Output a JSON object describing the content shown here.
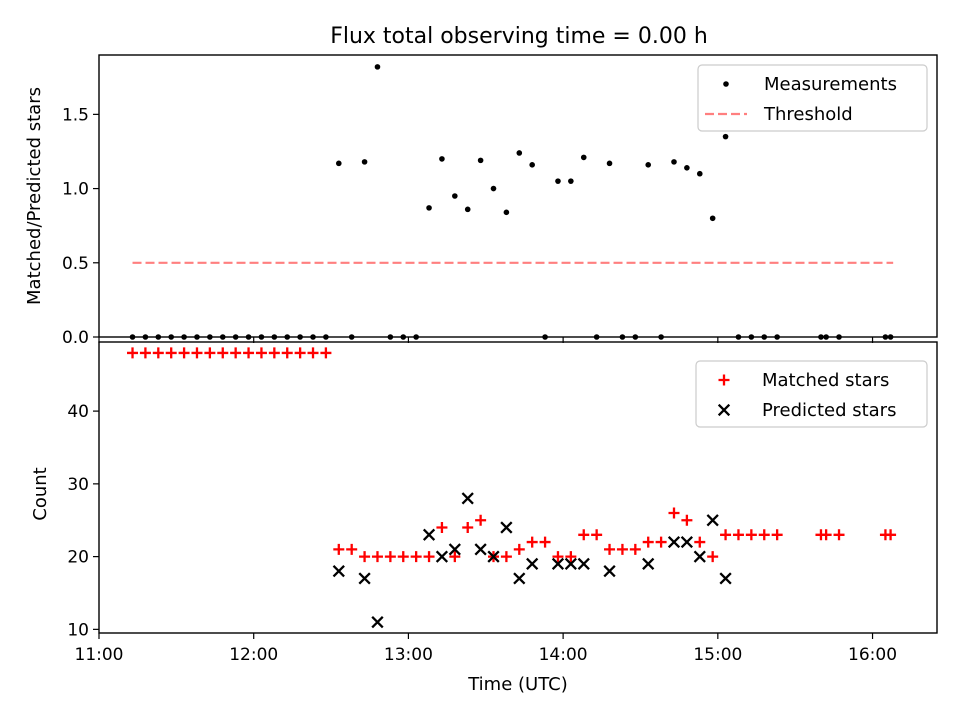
{
  "chart_data": [
    {
      "type": "scatter",
      "title": "Flux total observing time = 0.00 h",
      "xlabel": "",
      "ylabel": "Matched/Predicted stars",
      "xlim": [
        "11:00",
        "16:25"
      ],
      "ylim": [
        0,
        1.9
      ],
      "yticks": [
        0.0,
        0.5,
        1.0,
        1.5
      ],
      "ytick_labels": [
        "0.0",
        "0.5",
        "1.0",
        "1.5"
      ],
      "legend": {
        "placement": "top-right",
        "entries": [
          "Measurements",
          "Threshold"
        ]
      },
      "grid": false,
      "series": [
        {
          "name": "Measurements",
          "marker": "dot",
          "color": "#000000",
          "points": [
            [
              "11:13",
              0
            ],
            [
              "11:18",
              0
            ],
            [
              "11:23",
              0
            ],
            [
              "11:28",
              0
            ],
            [
              "11:33",
              0
            ],
            [
              "11:38",
              0
            ],
            [
              "11:43",
              0
            ],
            [
              "11:48",
              0
            ],
            [
              "11:53",
              0
            ],
            [
              "11:58",
              0
            ],
            [
              "12:03",
              0
            ],
            [
              "12:08",
              0
            ],
            [
              "12:13",
              0
            ],
            [
              "12:18",
              0
            ],
            [
              "12:23",
              0
            ],
            [
              "12:28",
              0
            ],
            [
              "12:33",
              1.17
            ],
            [
              "12:38",
              0
            ],
            [
              "12:43",
              1.18
            ],
            [
              "12:48",
              1.82
            ],
            [
              "12:53",
              0
            ],
            [
              "12:58",
              0
            ],
            [
              "13:03",
              0
            ],
            [
              "13:08",
              0.87
            ],
            [
              "13:13",
              1.2
            ],
            [
              "13:18",
              0.95
            ],
            [
              "13:23",
              0.86
            ],
            [
              "13:28",
              1.19
            ],
            [
              "13:33",
              1.0
            ],
            [
              "13:38",
              0.84
            ],
            [
              "13:43",
              1.24
            ],
            [
              "13:48",
              1.16
            ],
            [
              "13:53",
              0
            ],
            [
              "13:58",
              1.05
            ],
            [
              "14:03",
              1.05
            ],
            [
              "14:08",
              1.21
            ],
            [
              "14:13",
              0
            ],
            [
              "14:18",
              1.17
            ],
            [
              "14:23",
              0
            ],
            [
              "14:28",
              0
            ],
            [
              "14:33",
              1.16
            ],
            [
              "14:38",
              0
            ],
            [
              "14:43",
              1.18
            ],
            [
              "14:48",
              1.14
            ],
            [
              "14:53",
              1.1
            ],
            [
              "14:58",
              0.8
            ],
            [
              "15:03",
              1.35
            ],
            [
              "15:08",
              0
            ],
            [
              "15:13",
              0
            ],
            [
              "15:18",
              0
            ],
            [
              "15:23",
              0
            ],
            [
              "15:40",
              0
            ],
            [
              "15:42",
              0
            ],
            [
              "15:47",
              0
            ],
            [
              "16:05",
              0
            ],
            [
              "16:07",
              0
            ]
          ]
        },
        {
          "name": "Threshold",
          "style": "dashed",
          "color": "#ff7f7f",
          "points": [
            [
              "11:13",
              0.5
            ],
            [
              "16:08",
              0.5
            ]
          ]
        }
      ]
    },
    {
      "type": "scatter",
      "title": "",
      "xlabel": "Time (UTC)",
      "ylabel": "Count",
      "xlim": [
        "11:00",
        "16:25"
      ],
      "ylim": [
        9.5,
        49.5
      ],
      "yticks": [
        10,
        20,
        30,
        40
      ],
      "ytick_labels": [
        "10",
        "20",
        "30",
        "40"
      ],
      "xticks": [
        "11:00",
        "12:00",
        "13:00",
        "14:00",
        "15:00",
        "16:00"
      ],
      "xtick_labels": [
        "11:00",
        "12:00",
        "13:00",
        "14:00",
        "15:00",
        "16:00"
      ],
      "legend": {
        "placement": "top-right",
        "entries": [
          "Matched stars",
          "Predicted stars"
        ]
      },
      "grid": false,
      "series": [
        {
          "name": "Matched stars",
          "marker": "plus",
          "color": "#ff0000",
          "points": [
            [
              "11:13",
              48
            ],
            [
              "11:18",
              48
            ],
            [
              "11:23",
              48
            ],
            [
              "11:28",
              48
            ],
            [
              "11:33",
              48
            ],
            [
              "11:38",
              48
            ],
            [
              "11:43",
              48
            ],
            [
              "11:48",
              48
            ],
            [
              "11:53",
              48
            ],
            [
              "11:58",
              48
            ],
            [
              "12:03",
              48
            ],
            [
              "12:08",
              48
            ],
            [
              "12:13",
              48
            ],
            [
              "12:18",
              48
            ],
            [
              "12:23",
              48
            ],
            [
              "12:28",
              48
            ],
            [
              "12:33",
              21
            ],
            [
              "12:38",
              21
            ],
            [
              "12:43",
              20
            ],
            [
              "12:48",
              20
            ],
            [
              "12:53",
              20
            ],
            [
              "12:58",
              20
            ],
            [
              "13:03",
              20
            ],
            [
              "13:08",
              20
            ],
            [
              "13:13",
              24
            ],
            [
              "13:18",
              20
            ],
            [
              "13:23",
              24
            ],
            [
              "13:28",
              25
            ],
            [
              "13:33",
              20
            ],
            [
              "13:38",
              20
            ],
            [
              "13:43",
              21
            ],
            [
              "13:48",
              22
            ],
            [
              "13:53",
              22
            ],
            [
              "13:58",
              20
            ],
            [
              "14:03",
              20
            ],
            [
              "14:08",
              23
            ],
            [
              "14:13",
              23
            ],
            [
              "14:18",
              21
            ],
            [
              "14:23",
              21
            ],
            [
              "14:28",
              21
            ],
            [
              "14:33",
              22
            ],
            [
              "14:38",
              22
            ],
            [
              "14:43",
              26
            ],
            [
              "14:48",
              25
            ],
            [
              "14:53",
              22
            ],
            [
              "14:58",
              20
            ],
            [
              "15:03",
              23
            ],
            [
              "15:08",
              23
            ],
            [
              "15:13",
              23
            ],
            [
              "15:18",
              23
            ],
            [
              "15:23",
              23
            ],
            [
              "15:40",
              23
            ],
            [
              "15:42",
              23
            ],
            [
              "15:47",
              23
            ],
            [
              "16:05",
              23
            ],
            [
              "16:07",
              23
            ]
          ]
        },
        {
          "name": "Predicted stars",
          "marker": "x",
          "color": "#000000",
          "points": [
            [
              "12:33",
              18
            ],
            [
              "12:43",
              17
            ],
            [
              "12:48",
              11
            ],
            [
              "13:08",
              23
            ],
            [
              "13:13",
              20
            ],
            [
              "13:18",
              21
            ],
            [
              "13:23",
              28
            ],
            [
              "13:28",
              21
            ],
            [
              "13:33",
              20
            ],
            [
              "13:38",
              24
            ],
            [
              "13:43",
              17
            ],
            [
              "13:48",
              19
            ],
            [
              "13:58",
              19
            ],
            [
              "14:03",
              19
            ],
            [
              "14:08",
              19
            ],
            [
              "14:18",
              18
            ],
            [
              "14:33",
              19
            ],
            [
              "14:43",
              22
            ],
            [
              "14:48",
              22
            ],
            [
              "14:53",
              20
            ],
            [
              "14:58",
              25
            ],
            [
              "15:03",
              17
            ]
          ]
        }
      ]
    }
  ]
}
